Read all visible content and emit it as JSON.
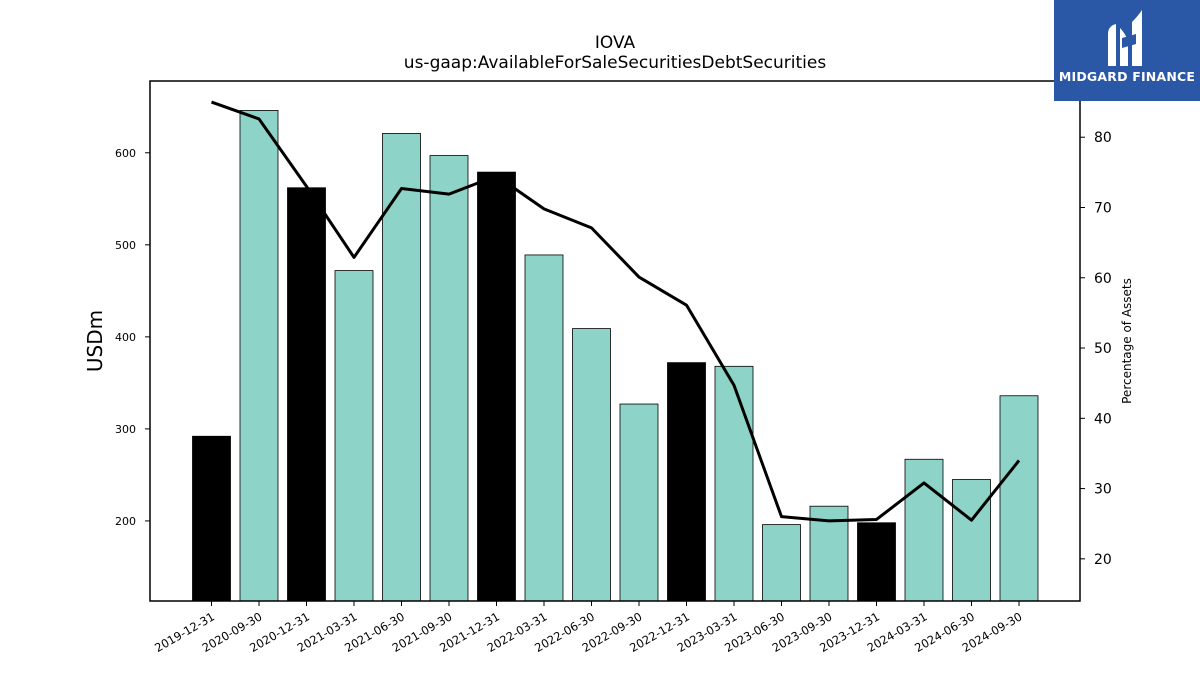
{
  "chart_data": {
    "type": "bar",
    "title": "IOVA",
    "subtitle": "us-gaap:AvailableForSaleSecuritiesDebtSecurities",
    "ylabel": "USDm",
    "y2label": "Percentage of Assets",
    "ylim": [
      113,
      678
    ],
    "y2lim": [
      14,
      88
    ],
    "yticks": [
      200,
      300,
      400,
      500,
      600
    ],
    "y2ticks": [
      20,
      30,
      40,
      50,
      60,
      70,
      80
    ],
    "categories": [
      "2019-12-31",
      "2020-09-30",
      "2020-12-31",
      "2021-03-31",
      "2021-06-30",
      "2021-09-30",
      "2021-12-31",
      "2022-03-31",
      "2022-06-30",
      "2022-09-30",
      "2022-12-31",
      "2023-03-31",
      "2023-06-30",
      "2023-09-30",
      "2023-12-31",
      "2024-03-31",
      "2024-06-30",
      "2024-09-30"
    ],
    "series": [
      {
        "values": [
          292,
          646,
          562,
          472,
          621,
          597,
          579,
          489,
          409,
          327,
          372,
          368,
          196,
          216,
          198,
          267,
          245,
          336
        ],
        "colors": [
          "#000000",
          "#8dd3c7",
          "#000000",
          "#8dd3c7",
          "#8dd3c7",
          "#8dd3c7",
          "#000000",
          "#8dd3c7",
          "#8dd3c7",
          "#8dd3c7",
          "#000000",
          "#8dd3c7",
          "#8dd3c7",
          "#8dd3c7",
          "#000000",
          "#8dd3c7",
          "#8dd3c7",
          "#8dd3c7"
        ]
      },
      {
        "type": "line",
        "axis": "right",
        "color": "#000000",
        "values": [
          85.0,
          82.6,
          73.0,
          62.9,
          72.7,
          71.9,
          74.5,
          69.8,
          67.1,
          60.1,
          56.1,
          44.7,
          26.0,
          25.4,
          25.6,
          30.8,
          25.5,
          34.0
        ]
      }
    ],
    "grid": false
  },
  "logo": {
    "text": "MIDGARD FINANCE",
    "background": "#2b57a7"
  }
}
